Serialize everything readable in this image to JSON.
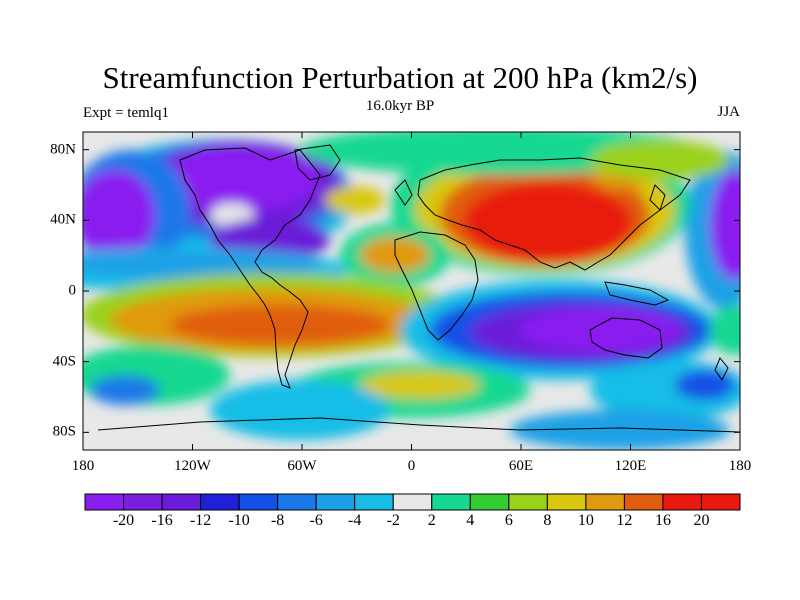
{
  "title": "Streamfunction Perturbation at 200 hPa (km2/s)",
  "subtitle_left": "Expt = temlq1",
  "subtitle_center": "16.0kyr BP",
  "subtitle_right": "JJA",
  "map": {
    "lat_labels": [
      "80N",
      "40N",
      "0",
      "40S",
      "80S"
    ],
    "lat_values": [
      80,
      40,
      0,
      -40,
      -80
    ],
    "lon_labels": [
      "180",
      "120W",
      "60W",
      "0",
      "60E",
      "120E",
      "180"
    ],
    "lon_values": [
      -180,
      -120,
      -60,
      0,
      60,
      120,
      180
    ],
    "background_color": "#e8e8e8",
    "land_outline_color": "#000000"
  },
  "colorbar": {
    "labels": [
      "-20",
      "-16",
      "-12",
      "-10",
      "-8",
      "-6",
      "-4",
      "-2",
      "2",
      "4",
      "6",
      "8",
      "10",
      "12",
      "16",
      "20"
    ],
    "colors": [
      "#8a1df0",
      "#7a1ee0",
      "#6a1ad8",
      "#2020d8",
      "#1450e6",
      "#1a78e8",
      "#1aa0e6",
      "#18bde6",
      "#e8e8e8",
      "#16d890",
      "#33cc33",
      "#9ad21a",
      "#d8c810",
      "#e09a10",
      "#e05d10",
      "#e81a10"
    ]
  }
}
